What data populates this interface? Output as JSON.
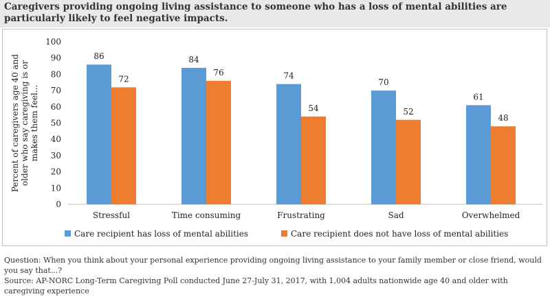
{
  "title": "Caregivers providing ongoing living assistance to someone who has a loss of mental abilities are particularly likely to feel negative impacts.",
  "question": "Question: When you think about your personal experience providing ongoing living assistance to your family member or close friend, would you say that...?",
  "source": "Source: AP-NORC Long-Term Caregiving Poll conducted June 27-July 31, 2017, with 1,004 adults nationwide age 40 and older with caregiving experience",
  "colors": {
    "series1": "#5b9bd5",
    "series2": "#ed7d31",
    "axis": "#bfbfbf"
  },
  "chart_data": {
    "type": "bar",
    "categories": [
      "Stressful",
      "Time consuming",
      "Frustrating",
      "Sad",
      "Overwhelmed"
    ],
    "series": [
      {
        "name": "Care recipient has loss of mental abilities",
        "values": [
          86,
          84,
          74,
          70,
          61
        ]
      },
      {
        "name": "Care recipient does not have loss of mental abilities",
        "values": [
          72,
          76,
          54,
          52,
          48
        ]
      }
    ],
    "ylabel_lines": [
      "Percent of caregivers age 40 and",
      "older who say caregiving is or",
      "makes them feel..."
    ],
    "ylim": [
      0,
      100
    ],
    "yticks": [
      0,
      10,
      20,
      30,
      40,
      50,
      60,
      70,
      80,
      90,
      100
    ],
    "legend_position": "bottom",
    "grid": false
  }
}
